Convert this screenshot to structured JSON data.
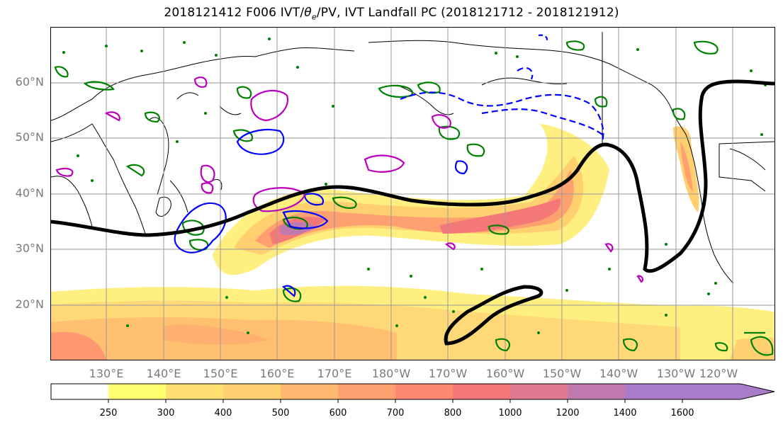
{
  "title": "2018121412 F006 IVT/θe/PV, IVT Landfall PC (2018121712 - 2018121912)",
  "map": {
    "lat_labels": [
      "60°N",
      "50°N",
      "40°N",
      "30°N",
      "20°N"
    ],
    "lon_labels": [
      "130°E",
      "140°E",
      "150°E",
      "160°E",
      "170°E",
      "180°W",
      "170°W",
      "160°W",
      "150°W",
      "140°W",
      "130°W",
      "120°W"
    ],
    "extent": {
      "lon_min": 120,
      "lon_max": 250,
      "lat_min": 10,
      "lat_max": 70
    }
  },
  "colorbar": {
    "ticks": [
      "250",
      "300",
      "400",
      "500",
      "600",
      "700",
      "800",
      "1000",
      "1200",
      "1400",
      "1600"
    ],
    "colors": [
      "#ffffff",
      "#ffff70",
      "#ffe070",
      "#ffcf70",
      "#ffb870",
      "#ffa070",
      "#ff8870",
      "#f47878",
      "#e07a90",
      "#c07ab0",
      "#a87cc8"
    ]
  },
  "colors": {
    "pc_contour": "#000000",
    "pv_contour": "#008000",
    "theta_e_contour": "#0000ff",
    "magenta_contour": "#bb00bb",
    "grid": "#999999",
    "tick_label": "#7a7a7a"
  }
}
